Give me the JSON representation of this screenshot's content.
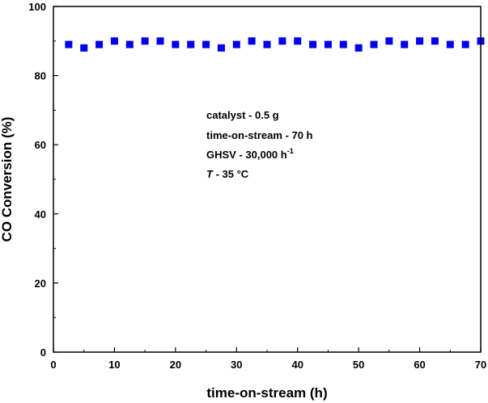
{
  "chart_data": {
    "type": "scatter",
    "xlabel": "time-on-stream (h)",
    "ylabel": "CO Conversion (%)",
    "xlim": [
      0,
      70
    ],
    "ylim": [
      0,
      100
    ],
    "xticks": [
      0,
      10,
      20,
      30,
      40,
      50,
      60,
      70
    ],
    "yticks": [
      0,
      20,
      40,
      60,
      80,
      100
    ],
    "grid": false,
    "marker": "square",
    "color": "#0000ee",
    "series": [
      {
        "x": [
          2.5,
          5,
          7.5,
          10,
          12.5,
          15,
          17.5,
          20,
          22.5,
          25,
          27.5,
          30,
          32.5,
          35,
          37.5,
          40,
          42.5,
          45,
          47.5,
          50,
          52.5,
          55,
          57.5,
          60,
          62.5,
          65,
          67.5,
          70
        ],
        "y": [
          89,
          88,
          89,
          90,
          89,
          90,
          90,
          89,
          89,
          89,
          88,
          89,
          90,
          89,
          90,
          90,
          89,
          89,
          89,
          88,
          89,
          90,
          89,
          90,
          90,
          89,
          89,
          90
        ]
      }
    ],
    "annotations": {
      "line1": "catalyst - 0.5 g",
      "line2": "time-on-stream - 70 h",
      "line3_main": "GHSV - 30,000 h",
      "line3_sup": "-1",
      "line4_italic": "T",
      "line4_rest": " - 35 °C"
    }
  }
}
